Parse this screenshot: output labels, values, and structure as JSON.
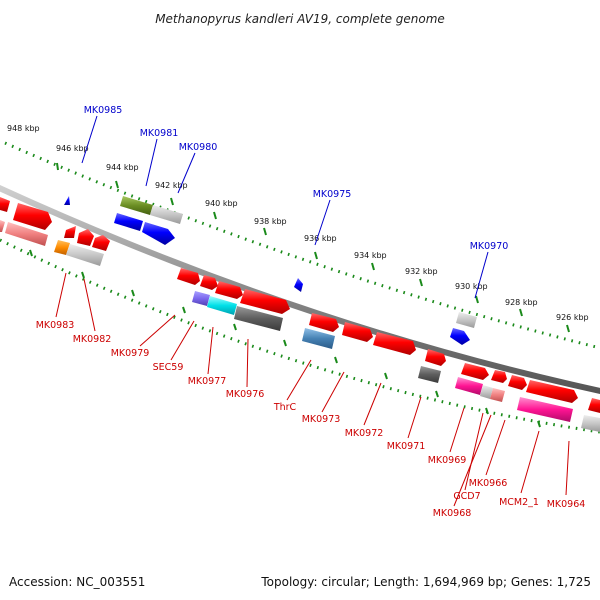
{
  "title": "Methanopyrus kandleri AV19, complete genome",
  "footer": {
    "accession": "Accession: NC_003551",
    "summary": "Topology: circular; Length: 1,694,969 bp; Genes: 1,725"
  },
  "scale": {
    "ticks": [
      "948 kbp",
      "946 kbp",
      "944 kbp",
      "942 kbp",
      "940 kbp",
      "938 kbp",
      "936 kbp",
      "934 kbp",
      "932 kbp",
      "930 kbp",
      "928 kbp",
      "926 kbp"
    ]
  },
  "colors": {
    "forward_label": "#0000cc",
    "reverse_label": "#cc0000",
    "backbone": "#8a8a8a",
    "scale_dots": "#1a8a1a"
  },
  "forward_labels": [
    "MK0985",
    "MK0981",
    "MK0980",
    "MK0975",
    "MK0970"
  ],
  "reverse_labels": [
    "MK0983",
    "MK0982",
    "MK0979",
    "SEC59",
    "MK0977",
    "MK0976",
    "ThrC",
    "MK0973",
    "MK0972",
    "MK0971",
    "MK0969",
    "GCD7",
    "MK0968",
    "MK0966",
    "MCM2_1",
    "MK0964"
  ]
}
